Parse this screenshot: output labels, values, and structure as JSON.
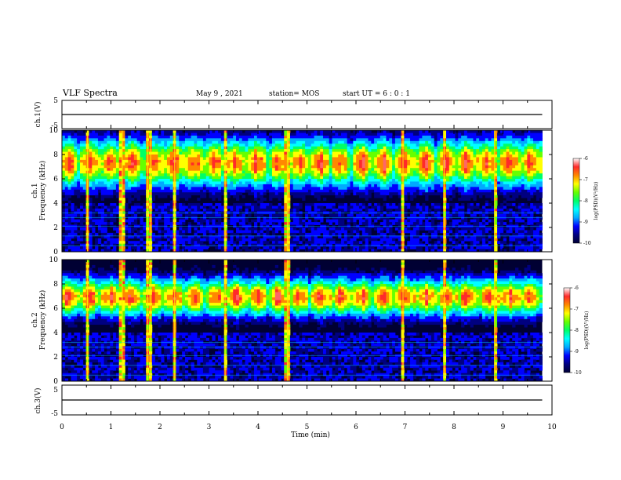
{
  "header": {
    "title": "VLF Spectra",
    "date": "May 9 , 2021",
    "station": "station= MOS",
    "start": "start  UT  =   6 : 0  : 1"
  },
  "colors": {
    "spectrum_scale": [
      "#000033",
      "#000080",
      "#0000ff",
      "#00aaff",
      "#00ffff",
      "#00ff66",
      "#66ff00",
      "#ffff00",
      "#ff8800",
      "#ff2a2a",
      "#ff6666"
    ],
    "waveform_line": "#000000"
  },
  "chart_data": [
    {
      "type": "line",
      "name": "ch.1 waveform",
      "ylabel": "ch.1(V)",
      "ylim": [
        -5,
        5
      ],
      "y_ticks": [
        "5",
        "-5"
      ],
      "xlim": [
        0,
        10
      ],
      "series": [
        {
          "x": [
            0,
            9.8
          ],
          "y": [
            0,
            0
          ]
        }
      ]
    },
    {
      "type": "heatmap",
      "name": "ch.1 spectrogram",
      "ylabel": "ch.1\nFrequency  (kHz)",
      "ylim": [
        0,
        10
      ],
      "y_ticks": [
        "0",
        "2",
        "4",
        "6",
        "8",
        "10"
      ],
      "xlim": [
        0,
        10
      ],
      "data_xmax": 9.8,
      "band_center_khz": 7.3,
      "band_width_khz": 1.9,
      "sferic_times_min": [
        0.52,
        1.23,
        1.75,
        1.81,
        2.3,
        3.33,
        4.6,
        4.63,
        6.96,
        7.8,
        8.83
      ],
      "colorbar": {
        "label": "log(PSD)(V²/Hz)",
        "range": [
          -10,
          -6
        ],
        "ticks": [
          "-6",
          "-7",
          "-8",
          "-9",
          "-10"
        ]
      }
    },
    {
      "type": "heatmap",
      "name": "ch.2 spectrogram",
      "ylabel": "ch.2\nFrequency  (kHz)",
      "ylim": [
        0,
        10
      ],
      "y_ticks": [
        "0",
        "2",
        "4",
        "6",
        "8",
        "10"
      ],
      "xlim": [
        0,
        10
      ],
      "data_xmax": 9.8,
      "band_center_khz": 6.9,
      "band_width_khz": 1.5,
      "sferic_times_min": [
        0.52,
        1.23,
        1.75,
        1.81,
        2.3,
        3.33,
        4.6,
        4.63,
        6.96,
        7.8,
        8.83
      ],
      "colorbar": {
        "label": "log(PSD)(V²/Hz)",
        "range": [
          -10,
          -6
        ],
        "ticks": [
          "-6",
          "-7",
          "-8",
          "-9",
          "-10"
        ]
      }
    },
    {
      "type": "line",
      "name": "ch.3 waveform",
      "ylabel": "ch.3(V)",
      "ylim": [
        -5,
        5
      ],
      "y_ticks": [
        "5",
        "-5"
      ],
      "xlim": [
        0,
        10
      ],
      "xlabel": "Time  (min)",
      "x_ticks": [
        "0",
        "1",
        "2",
        "3",
        "4",
        "5",
        "6",
        "7",
        "8",
        "9",
        "10"
      ],
      "series": [
        {
          "x": [
            0,
            9.8
          ],
          "y": [
            0,
            0
          ]
        }
      ]
    }
  ]
}
